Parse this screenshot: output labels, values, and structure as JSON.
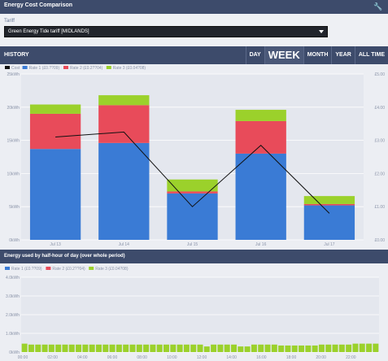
{
  "header": {
    "title": "Energy Cost Comparison",
    "settings_icon": "wrench-icon"
  },
  "tariff": {
    "label": "Tariff",
    "selected": "Green Energy Tide tariff [MIDLANDS]"
  },
  "history": {
    "title": "HISTORY",
    "tabs": [
      "DAY",
      "WEEK",
      "MONTH",
      "YEAR",
      "ALL TIME"
    ],
    "active_tab": "WEEK"
  },
  "half_hour": {
    "title": "Energy used by half-hour of day (over whole period)"
  },
  "colors": {
    "rate1": "#3a7bd5",
    "rate2": "#e84b5a",
    "rate3": "#9bd12b",
    "cost": "#111111"
  },
  "chart_data": [
    {
      "type": "bar",
      "stacked": true,
      "legend_position": "top-left",
      "categories": [
        "Jul 13",
        "Jul 14",
        "Jul 15",
        "Jul 16",
        "Jul 17"
      ],
      "series": [
        {
          "name": "Rate 1 (£0.??09)",
          "values": [
            13.7,
            14.6,
            7.0,
            13.0,
            5.2
          ]
        },
        {
          "name": "Rate 2 (£0.2??04)",
          "values": [
            5.3,
            5.7,
            0.3,
            4.9,
            0.2
          ]
        },
        {
          "name": "Rate 3 (£0.04?08)",
          "values": [
            1.4,
            1.5,
            1.8,
            1.7,
            1.2
          ]
        }
      ],
      "line_series": {
        "name": "Cost",
        "values": [
          3.1,
          3.25,
          1.0,
          2.85,
          0.8
        ]
      },
      "ylim": [
        0,
        25
      ],
      "y_ticks": [
        "0kWh",
        "5kWh",
        "10kWh",
        "15kWh",
        "20kWh",
        "25kWh"
      ],
      "y2lim": [
        0,
        5
      ],
      "y2_ticks": [
        "£0.00",
        "£1.00",
        "£2.00",
        "£3.00",
        "£4.00",
        "£5.00"
      ]
    },
    {
      "type": "bar",
      "legend_position": "top-left",
      "legend": [
        "Rate 1 (£0.??09)",
        "Rate 2 (£0.2??04)",
        "Rate 3 (£0.04?08)"
      ],
      "values": [
        0.45,
        0.4,
        0.4,
        0.4,
        0.4,
        0.4,
        0.4,
        0.4,
        0.4,
        0.4,
        0.4,
        0.4,
        0.4,
        0.4,
        0.4,
        0.4,
        0.4,
        0.4,
        0.4,
        0.4,
        0.4,
        0.4,
        0.4,
        0.4,
        0.4,
        0.4,
        0.4,
        0.3,
        0.4,
        0.4,
        0.4,
        0.4,
        0.3,
        0.3,
        0.4,
        0.4,
        0.4,
        0.4,
        0.35,
        0.35,
        0.35,
        0.35,
        0.35,
        0.35,
        0.4,
        0.4,
        0.4,
        0.4,
        0.4,
        0.45,
        0.45,
        0.45,
        0.45
      ],
      "rates": [
        3,
        3,
        3,
        3,
        3,
        3,
        3,
        3,
        3,
        3,
        3,
        3,
        3,
        3,
        3,
        3,
        3,
        3,
        3,
        3,
        3,
        3,
        3,
        3,
        3,
        3,
        3,
        3,
        3,
        3,
        3,
        3,
        3,
        3,
        3,
        3,
        3,
        3,
        3,
        3,
        3,
        3,
        3,
        3,
        3,
        3,
        3,
        3,
        3,
        3,
        3,
        3,
        3
      ],
      "x_ticks": [
        "00:00",
        "02:00",
        "04:00",
        "06:00",
        "08:00",
        "10:00",
        "12:00",
        "14:00",
        "16:00",
        "18:00",
        "20:00",
        "22:00"
      ],
      "ylim": [
        0,
        4
      ],
      "y_ticks": [
        "0kWh",
        "1.0kWh",
        "2.0kWh",
        "3.0kWh",
        "4.0kWh"
      ]
    }
  ]
}
